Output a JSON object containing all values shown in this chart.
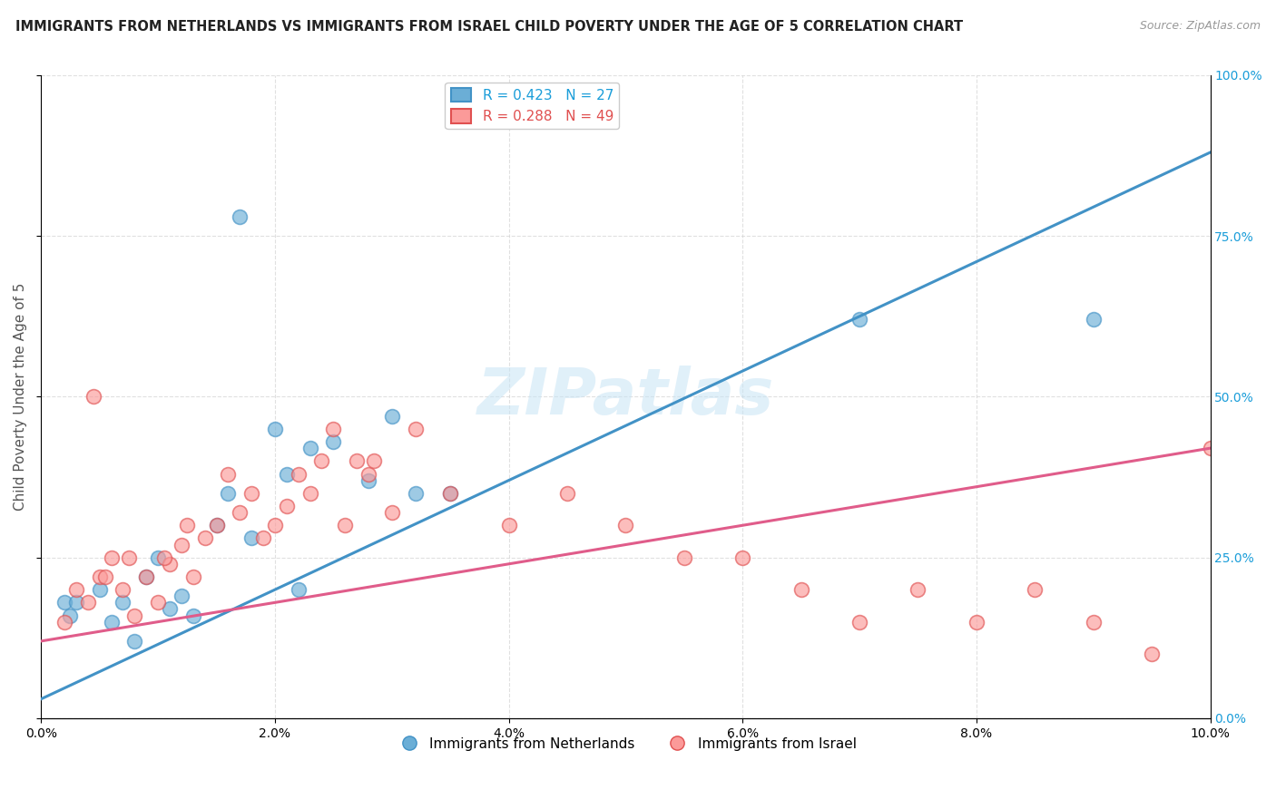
{
  "title": "IMMIGRANTS FROM NETHERLANDS VS IMMIGRANTS FROM ISRAEL CHILD POVERTY UNDER THE AGE OF 5 CORRELATION CHART",
  "source": "Source: ZipAtlas.com",
  "ylabel_left": "Child Poverty Under the Age of 5",
  "watermark": "ZIPatlas",
  "legend_netherlands": "R = 0.423   N = 27",
  "legend_israel": "R = 0.288   N = 49",
  "color_netherlands": "#6baed6",
  "color_israel": "#fb9a99",
  "color_netherlands_line": "#4292c6",
  "color_israel_line": "#e05c8a",
  "xlim": [
    0.0,
    10.0
  ],
  "ylim": [
    0.0,
    100.0
  ],
  "x_ticks": [
    0.0,
    2.0,
    4.0,
    6.0,
    8.0,
    10.0
  ],
  "y_ticks_right": [
    0.0,
    25.0,
    50.0,
    75.0,
    100.0
  ],
  "netherlands_scatter_x": [
    0.2,
    0.25,
    0.3,
    0.5,
    0.6,
    0.7,
    0.8,
    0.9,
    1.0,
    1.1,
    1.2,
    1.3,
    1.5,
    1.6,
    1.7,
    1.8,
    2.0,
    2.1,
    2.3,
    2.5,
    2.8,
    3.0,
    3.2,
    3.5,
    2.2,
    7.0,
    9.0
  ],
  "netherlands_scatter_y": [
    18,
    16,
    18,
    20,
    15,
    18,
    12,
    22,
    25,
    17,
    19,
    16,
    30,
    35,
    78,
    28,
    45,
    38,
    42,
    43,
    37,
    47,
    35,
    35,
    20,
    62,
    62
  ],
  "netherlands_line_x": [
    0.0,
    10.0
  ],
  "netherlands_line_y": [
    3.0,
    88.0
  ],
  "israel_scatter_x": [
    0.2,
    0.3,
    0.4,
    0.5,
    0.6,
    0.7,
    0.8,
    0.9,
    1.0,
    1.1,
    1.2,
    1.3,
    1.4,
    1.5,
    1.6,
    1.7,
    1.8,
    1.9,
    2.0,
    2.1,
    2.2,
    2.3,
    2.4,
    2.5,
    2.6,
    2.7,
    2.8,
    3.0,
    3.2,
    3.5,
    4.0,
    4.5,
    5.0,
    5.5,
    6.0,
    6.5,
    7.0,
    7.5,
    8.0,
    8.5,
    9.0,
    9.5,
    10.0,
    1.05,
    1.25,
    2.85,
    0.75,
    0.55,
    0.45
  ],
  "israel_scatter_y": [
    15,
    20,
    18,
    22,
    25,
    20,
    16,
    22,
    18,
    24,
    27,
    22,
    28,
    30,
    38,
    32,
    35,
    28,
    30,
    33,
    38,
    35,
    40,
    45,
    30,
    40,
    38,
    32,
    45,
    35,
    30,
    35,
    30,
    25,
    25,
    20,
    15,
    20,
    15,
    20,
    15,
    10,
    42,
    25,
    30,
    40,
    25,
    22,
    50
  ],
  "israel_line_x": [
    0.0,
    10.0
  ],
  "israel_line_y": [
    12.0,
    42.0
  ],
  "background_color": "#ffffff",
  "grid_color": "#d3d3d3",
  "title_fontsize": 10.5,
  "axis_label_fontsize": 11,
  "tick_fontsize": 10,
  "legend_fontsize": 11,
  "watermark_fontsize": 52,
  "watermark_color": "#c8e4f5",
  "watermark_alpha": 0.55,
  "bottom_legend_netherlands": "Immigrants from Netherlands",
  "bottom_legend_israel": "Immigrants from Israel"
}
